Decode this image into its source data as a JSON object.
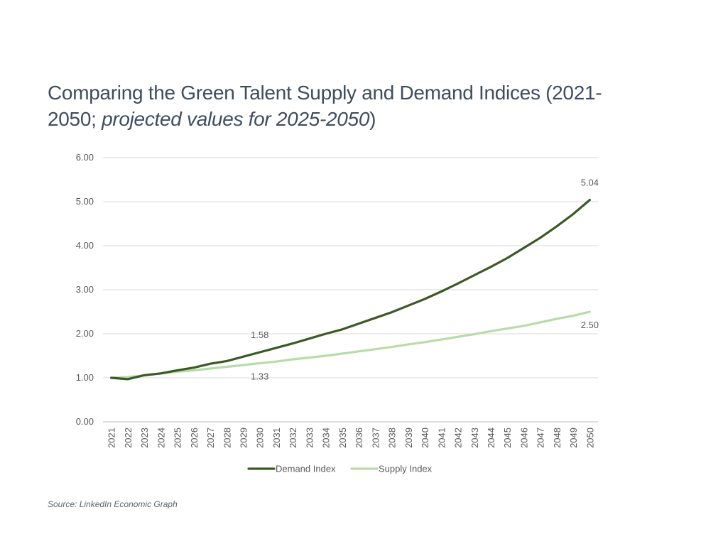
{
  "chart_data": {
    "type": "line",
    "title_main": "Comparing the Green Talent Supply and Demand Indices (2021-2050; ",
    "title_italic": "projected values for 2025-2050",
    "title_end": ")",
    "categories": [
      "2021",
      "2022",
      "2023",
      "2024",
      "2025",
      "2026",
      "2027",
      "2028",
      "2029",
      "2030",
      "2031",
      "2032",
      "2033",
      "2034",
      "2035",
      "2036",
      "2037",
      "2038",
      "2039",
      "2040",
      "2041",
      "2042",
      "2043",
      "2044",
      "2045",
      "2046",
      "2047",
      "2048",
      "2049",
      "2050"
    ],
    "series": [
      {
        "name": "Demand Index",
        "color": "#3a5a24",
        "values": [
          1.0,
          0.97,
          1.06,
          1.1,
          1.17,
          1.23,
          1.32,
          1.38,
          1.48,
          1.58,
          1.68,
          1.78,
          1.89,
          2.0,
          2.1,
          2.23,
          2.36,
          2.49,
          2.64,
          2.79,
          2.96,
          3.14,
          3.33,
          3.52,
          3.72,
          3.95,
          4.18,
          4.44,
          4.72,
          5.04
        ]
      },
      {
        "name": "Supply Index",
        "color": "#b9dba8",
        "values": [
          1.0,
          1.02,
          1.05,
          1.1,
          1.14,
          1.17,
          1.21,
          1.25,
          1.29,
          1.33,
          1.37,
          1.42,
          1.46,
          1.5,
          1.55,
          1.6,
          1.65,
          1.7,
          1.76,
          1.81,
          1.87,
          1.93,
          1.99,
          2.06,
          2.12,
          2.18,
          2.26,
          2.34,
          2.41,
          2.5
        ]
      }
    ],
    "yticks": [
      "0.00",
      "1.00",
      "2.00",
      "3.00",
      "4.00",
      "5.00",
      "6.00"
    ],
    "ylim": [
      0,
      6
    ],
    "grid": true,
    "legend_position": "bottom-center",
    "annotations": [
      {
        "series": "Demand Index",
        "year": "2030",
        "label": "1.58"
      },
      {
        "series": "Supply Index",
        "year": "2030",
        "label": "1.33"
      },
      {
        "series": "Demand Index",
        "year": "2050",
        "label": "5.04"
      },
      {
        "series": "Supply Index",
        "year": "2050",
        "label": "2.50"
      }
    ],
    "source": "Source: LinkedIn Economic Graph"
  }
}
